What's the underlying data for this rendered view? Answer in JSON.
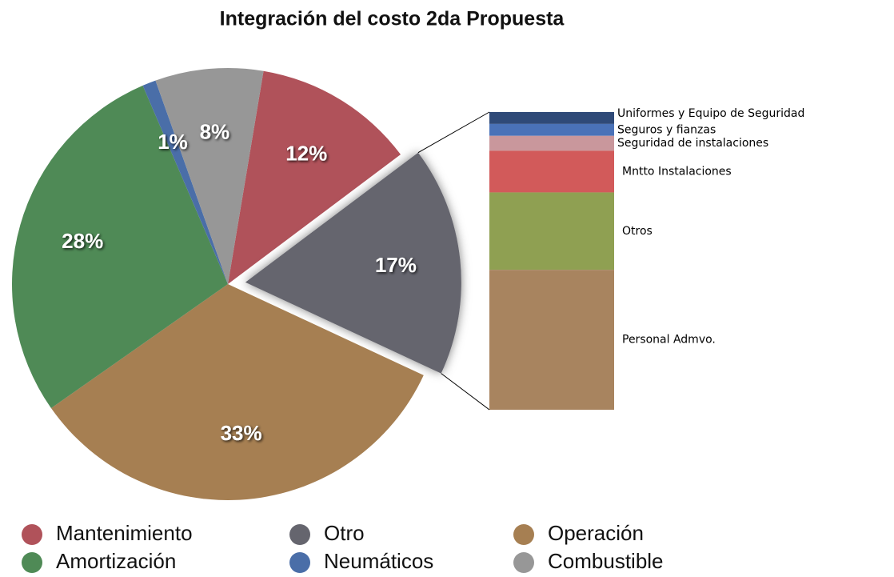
{
  "chart_data": [
    {
      "type": "pie",
      "title": "Integración del costo 2da Propuesta",
      "categories": [
        "Mantenimiento",
        "Otro",
        "Operación",
        "Amortización",
        "Neumáticos",
        "Combustible"
      ],
      "values": [
        12,
        17,
        33,
        28,
        1,
        8
      ],
      "value_labels": [
        "12%",
        "17%",
        "33%",
        "28%",
        "1%",
        "8%"
      ],
      "colors": [
        "#b0525a",
        "#65656e",
        "#a67f52",
        "#4f8a56",
        "#4a6ea8",
        "#979797"
      ]
    },
    {
      "type": "stacked_bar",
      "categories": [
        "Uniformes  y Equipo de Seguridad",
        "Seguros y fianzas",
        "Seguridad de instalaciones",
        "Mntto Instalaciones",
        "Otros",
        "Personal Admvo."
      ],
      "values": [
        4,
        4,
        5,
        14,
        26,
        47
      ],
      "colors": [
        "#2f4a78",
        "#4a72b8",
        "#c9979c",
        "#d25a5a",
        "#8fa052",
        "#a8845f"
      ]
    }
  ]
}
